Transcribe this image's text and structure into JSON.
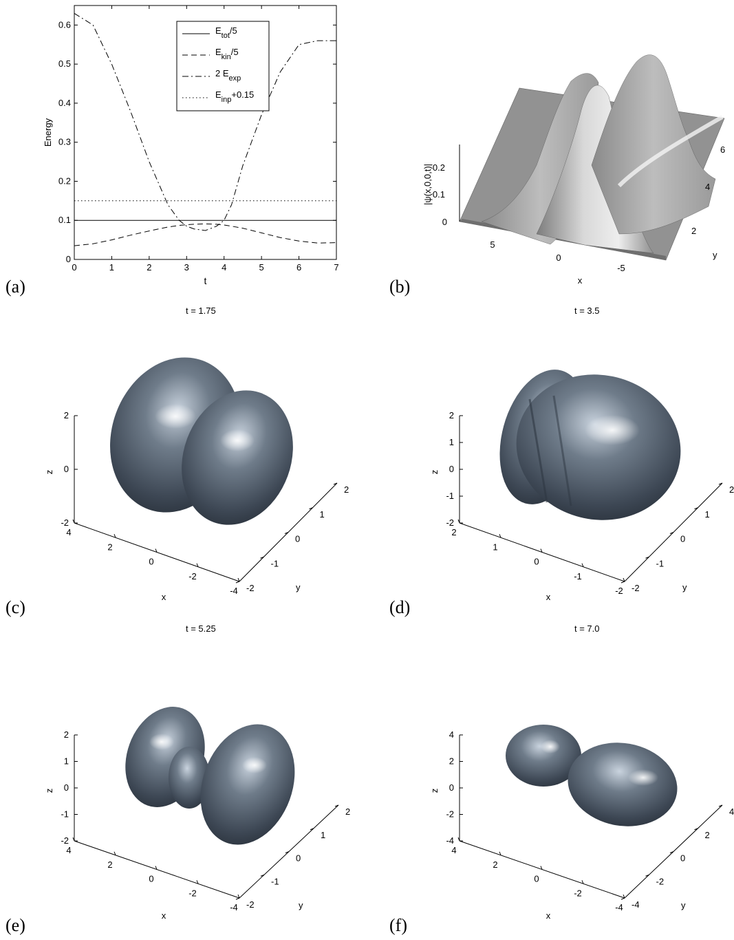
{
  "panel_letters": {
    "a": "(a)",
    "b": "(b)",
    "c": "(c)",
    "d": "(d)",
    "e": "(e)",
    "f": "(f)"
  },
  "chart_data": [
    {
      "id": "a",
      "type": "line",
      "xlabel": "t",
      "ylabel": "Energy",
      "xlim": [
        0,
        7
      ],
      "ylim": [
        0,
        0.65
      ],
      "xticks": [
        "0",
        "1",
        "2",
        "3",
        "4",
        "5",
        "6",
        "7"
      ],
      "yticks": [
        "0",
        "0.1",
        "0.2",
        "0.3",
        "0.4",
        "0.5",
        "0.6"
      ],
      "grid": false,
      "legend_position": "top-right",
      "legend": [
        {
          "label": "E",
          "sub": "tot",
          "suffix": "/5"
        },
        {
          "label": "E",
          "sub": "kin",
          "suffix": "/5"
        },
        {
          "label": "2 E",
          "sub": "exp",
          "suffix": ""
        },
        {
          "label": "E",
          "sub": "inp",
          "suffix": "+0.15"
        }
      ],
      "x": [
        0,
        0.5,
        1,
        1.5,
        2,
        2.5,
        2.8,
        3,
        3.2,
        3.5,
        3.8,
        4,
        4.2,
        4.5,
        5,
        5.5,
        6,
        6.5,
        7
      ],
      "series": [
        {
          "name": "E_tot/5",
          "style": "solid",
          "values": [
            0.1,
            0.1,
            0.1,
            0.1,
            0.1,
            0.1,
            0.1,
            0.1,
            0.1,
            0.1,
            0.1,
            0.1,
            0.1,
            0.1,
            0.1,
            0.1,
            0.1,
            0.1,
            0.1
          ]
        },
        {
          "name": "E_kin/5",
          "style": "dashed",
          "values": [
            0.035,
            0.04,
            0.05,
            0.062,
            0.073,
            0.083,
            0.087,
            0.089,
            0.09,
            0.091,
            0.09,
            0.088,
            0.085,
            0.08,
            0.068,
            0.056,
            0.047,
            0.042,
            0.043
          ]
        },
        {
          "name": "2 E_exp",
          "style": "dashdot",
          "values": [
            0.63,
            0.6,
            0.5,
            0.38,
            0.25,
            0.14,
            0.1,
            0.085,
            0.078,
            0.074,
            0.085,
            0.1,
            0.14,
            0.24,
            0.37,
            0.48,
            0.55,
            0.56,
            0.56
          ]
        },
        {
          "name": "E_inp+0.15",
          "style": "dotted",
          "values": [
            0.15,
            0.15,
            0.15,
            0.15,
            0.15,
            0.15,
            0.15,
            0.15,
            0.15,
            0.15,
            0.15,
            0.15,
            0.15,
            0.15,
            0.15,
            0.15,
            0.15,
            0.15,
            0.15
          ]
        }
      ]
    },
    {
      "id": "b",
      "type": "surface",
      "xlabel": "x",
      "ylabel": "y",
      "zlabel": "|ψ(x,0,0,t)|",
      "xticks": [
        "5",
        "0",
        "-5"
      ],
      "yticks": [
        "2",
        "4",
        "6"
      ],
      "zticks": [
        "0",
        "0.1",
        "0.2"
      ]
    },
    {
      "id": "c",
      "type": "isosurface",
      "title": "t = 1.75",
      "xlabel": "x",
      "ylabel": "y",
      "zlabel": "z",
      "xticks": [
        "4",
        "2",
        "0",
        "-2",
        "-4"
      ],
      "yticks": [
        "-2",
        "-1",
        "0",
        "1",
        "2"
      ],
      "zticks": [
        "-2",
        "0",
        "2"
      ]
    },
    {
      "id": "d",
      "type": "isosurface",
      "title": "t = 3.5",
      "xlabel": "x",
      "ylabel": "y",
      "zlabel": "z",
      "xticks": [
        "2",
        "1",
        "0",
        "-1",
        "-2"
      ],
      "yticks": [
        "-2",
        "-1",
        "0",
        "1",
        "2"
      ],
      "zticks": [
        "-2",
        "-1",
        "0",
        "1",
        "2"
      ]
    },
    {
      "id": "e",
      "type": "isosurface",
      "title": "t = 5.25",
      "xlabel": "x",
      "ylabel": "y",
      "zlabel": "z",
      "xticks": [
        "4",
        "2",
        "0",
        "-2",
        "-4"
      ],
      "yticks": [
        "-2",
        "-1",
        "0",
        "1",
        "2"
      ],
      "zticks": [
        "-2",
        "-1",
        "0",
        "1",
        "2"
      ]
    },
    {
      "id": "f",
      "type": "isosurface",
      "title": "t = 7.0",
      "xlabel": "x",
      "ylabel": "y",
      "zlabel": "z",
      "xticks": [
        "4",
        "2",
        "0",
        "-2",
        "-4"
      ],
      "yticks": [
        "-4",
        "-2",
        "0",
        "2",
        "4"
      ],
      "zticks": [
        "-4",
        "-2",
        "0",
        "2",
        "4"
      ]
    }
  ]
}
